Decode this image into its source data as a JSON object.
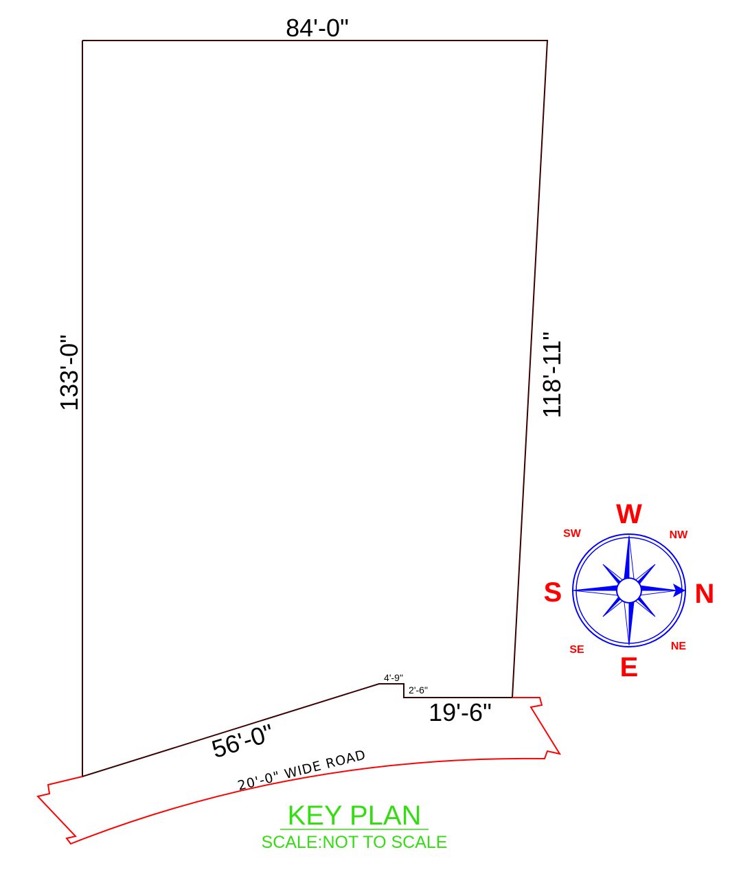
{
  "dimensions": {
    "top": "84'-0\"",
    "left": "133'-0\"",
    "right": "118'-11\"",
    "front_diagonal": "56'-0\"",
    "front_right": "19'-6\"",
    "jog_horizontal": "4'-9\"",
    "jog_vertical": "2'-6\""
  },
  "road": {
    "label": "20'-0\" WIDE ROAD"
  },
  "compass": {
    "top": "W",
    "bottom": "E",
    "left": "S",
    "right": "N",
    "top_left": "SW",
    "top_right": "NW",
    "bottom_left": "SE",
    "bottom_right": "NE"
  },
  "title": {
    "main": "KEY PLAN",
    "scale": "SCALE:NOT TO SCALE"
  },
  "colors": {
    "plot_line": "#3a0000",
    "road_line": "#ff0000",
    "compass": "#0000ff",
    "compass_text": "#ff0000",
    "title": "#33dd11"
  }
}
